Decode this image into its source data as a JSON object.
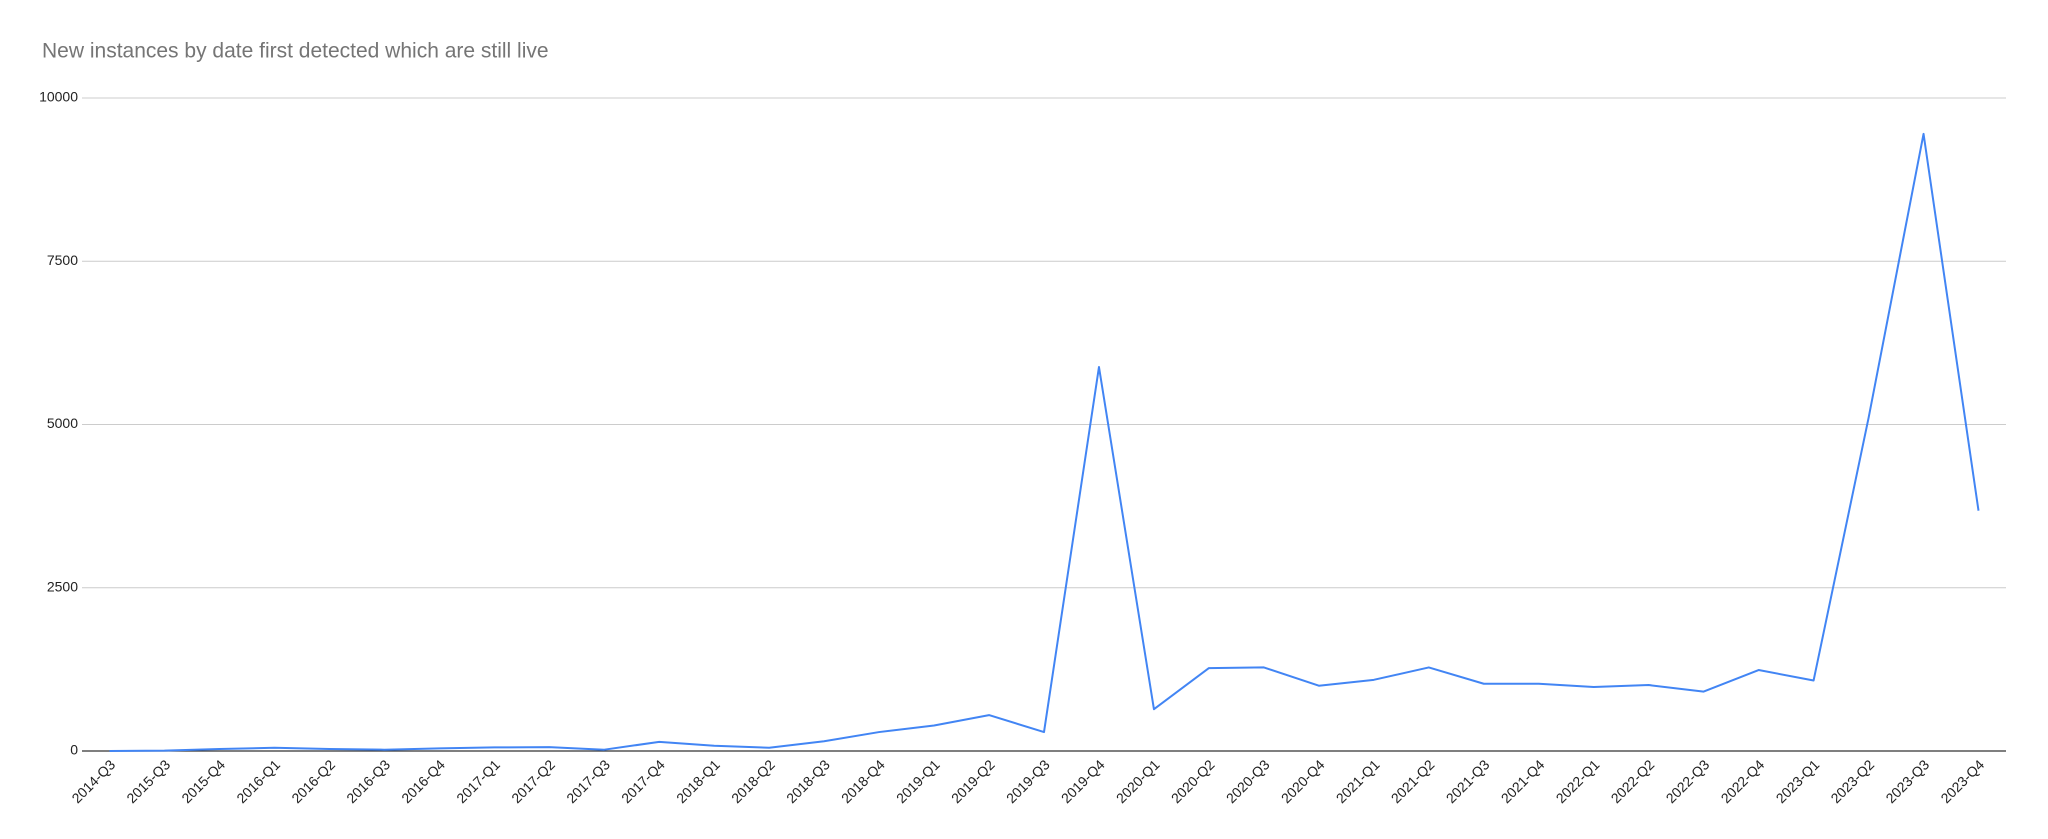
{
  "chart_data": {
    "type": "line",
    "title": "New instances by date first detected which are still live",
    "categories": [
      "2014-Q3",
      "2015-Q3",
      "2015-Q4",
      "2016-Q1",
      "2016-Q2",
      "2016-Q3",
      "2016-Q4",
      "2017-Q1",
      "2017-Q2",
      "2017-Q3",
      "2017-Q4",
      "2018-Q1",
      "2018-Q2",
      "2018-Q3",
      "2018-Q4",
      "2019-Q1",
      "2019-Q2",
      "2019-Q3",
      "2019-Q4",
      "2020-Q1",
      "2020-Q2",
      "2020-Q3",
      "2020-Q4",
      "2021-Q1",
      "2021-Q2",
      "2021-Q3",
      "2021-Q4",
      "2022-Q1",
      "2022-Q2",
      "2022-Q3",
      "2022-Q4",
      "2023-Q1",
      "2023-Q2",
      "2023-Q3",
      "2023-Q4"
    ],
    "series": [
      {
        "name": "New instances",
        "color": "#4285f4",
        "values": [
          0,
          5,
          30,
          50,
          30,
          20,
          40,
          55,
          60,
          20,
          140,
          80,
          50,
          150,
          290,
          390,
          550,
          290,
          5880,
          640,
          1270,
          1280,
          1000,
          1090,
          1280,
          1030,
          1030,
          980,
          1010,
          910,
          1240,
          1080,
          5100,
          9450,
          3680
        ]
      }
    ],
    "ylim": [
      0,
      10000
    ],
    "yticks": [
      0,
      2500,
      5000,
      7500,
      10000
    ],
    "grid": true
  }
}
